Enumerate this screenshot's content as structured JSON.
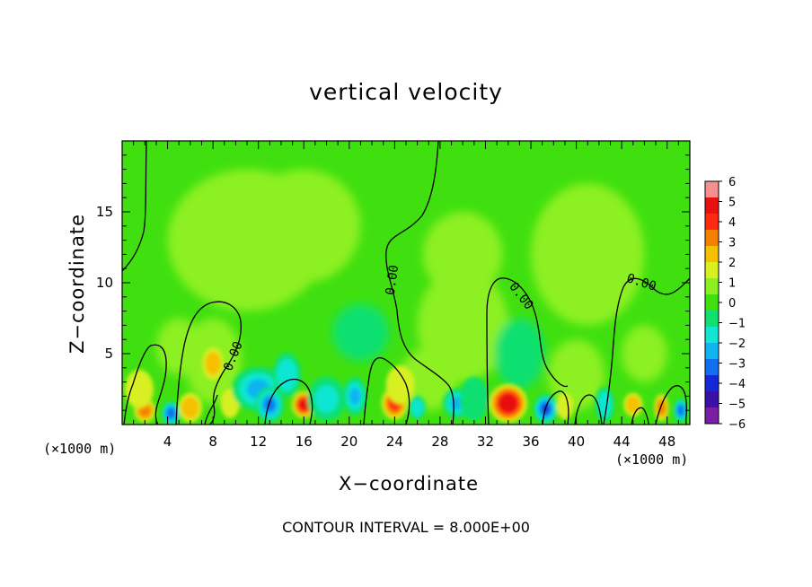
{
  "chart_data": {
    "type": "heatmap",
    "title": "vertical velocity",
    "xlabel": "X−coordinate",
    "ylabel": "Z−coordinate",
    "x_unit_label": "(×1000 m)",
    "x_ticks": [
      4,
      8,
      12,
      16,
      20,
      24,
      28,
      32,
      36,
      40,
      44,
      48
    ],
    "y_ticks": [
      5,
      10,
      15
    ],
    "xlim": [
      0,
      50
    ],
    "ylim": [
      0,
      20
    ],
    "colorbar": {
      "ticks": [
        6,
        5,
        4,
        3,
        2,
        1,
        0,
        -1,
        -2,
        -3,
        -4,
        -5,
        -6
      ],
      "tick_labels": [
        "6",
        "5",
        "4",
        "3",
        "2",
        "1",
        "0",
        "−1",
        "−2",
        "−3",
        "−4",
        "−5",
        "−6"
      ],
      "range": [
        -6,
        6
      ]
    },
    "contour_label": "0.00",
    "footer": "CONTOUR INTERVAL = 8.000E+00"
  }
}
